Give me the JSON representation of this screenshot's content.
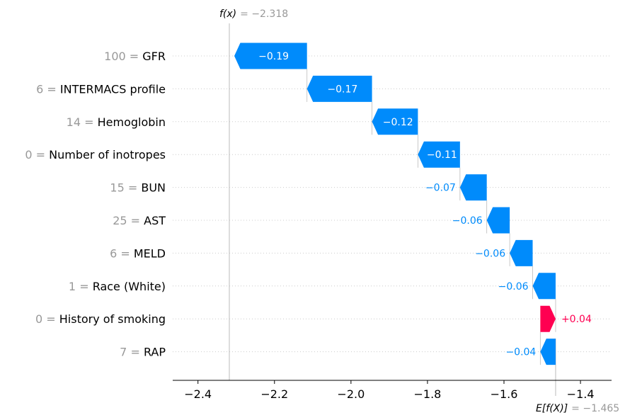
{
  "chart_data": {
    "type": "waterfall",
    "fx_annotation": {
      "label": "f(x)",
      "value_text": "= −2.318",
      "value": -2.318
    },
    "efx_annotation": {
      "label": "E[f(X)]",
      "value_text": "= −1.465",
      "value": -1.465
    },
    "features": [
      {
        "value": "100",
        "name": "GFR",
        "contribution": -0.19,
        "label": "−0.19"
      },
      {
        "value": "6",
        "name": "INTERMACS profile",
        "contribution": -0.17,
        "label": "−0.17"
      },
      {
        "value": "14",
        "name": "Hemoglobin",
        "contribution": -0.12,
        "label": "−0.12"
      },
      {
        "value": "0",
        "name": "Number of inotropes",
        "contribution": -0.11,
        "label": "−0.11"
      },
      {
        "value": "15",
        "name": "BUN",
        "contribution": -0.07,
        "label": "−0.07"
      },
      {
        "value": "25",
        "name": "AST",
        "contribution": -0.06,
        "label": "−0.06"
      },
      {
        "value": "6",
        "name": "MELD",
        "contribution": -0.06,
        "label": "−0.06"
      },
      {
        "value": "1",
        "name": "Race (White)",
        "contribution": -0.06,
        "label": "−0.06"
      },
      {
        "value": "0",
        "name": "History of smoking",
        "contribution": 0.04,
        "label": "+0.04"
      },
      {
        "value": "7",
        "name": "RAP",
        "contribution": -0.04,
        "label": "−0.04"
      }
    ],
    "x_ticks": [
      {
        "value": -2.4,
        "label": "−2.4"
      },
      {
        "value": -2.2,
        "label": "−2.2"
      },
      {
        "value": -2.0,
        "label": "−2.0"
      },
      {
        "value": -1.8,
        "label": "−1.8"
      },
      {
        "value": -1.6,
        "label": "−1.6"
      },
      {
        "value": -1.4,
        "label": "−1.4"
      }
    ],
    "xlim": [
      -2.46,
      -1.33
    ],
    "colors": {
      "negative": "#008bfb",
      "positive": "#ff0051",
      "muted_text": "#999999"
    }
  }
}
